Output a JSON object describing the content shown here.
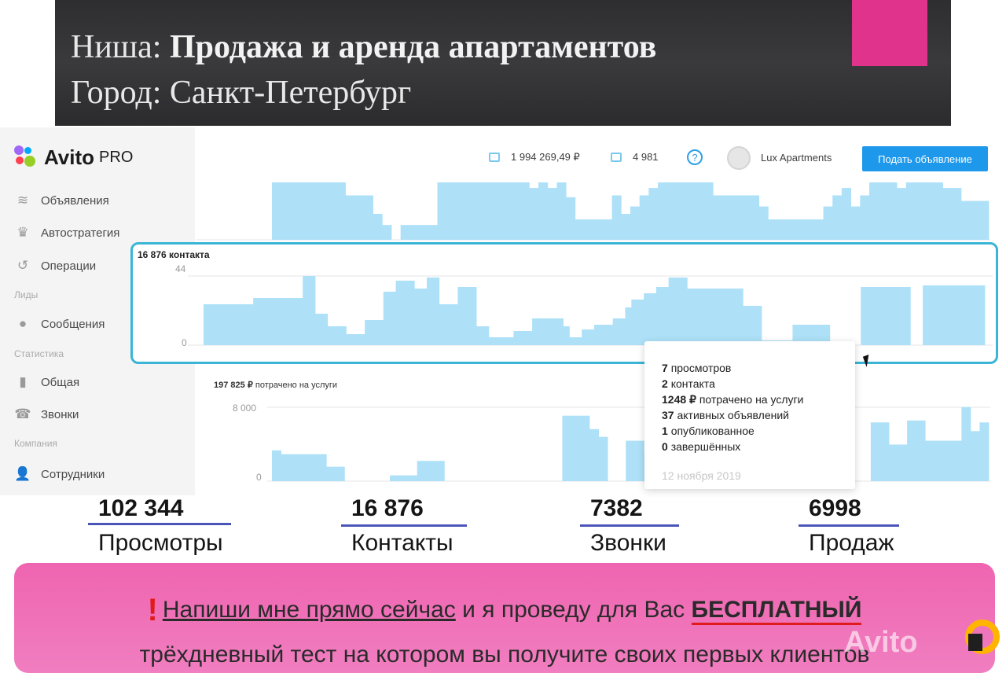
{
  "banner": {
    "niche_label": "Ниша:",
    "niche_value": "Продажа и аренда апартаментов",
    "city_label": "Город:",
    "city_value": "Санкт-Петербург",
    "accent_color": "#e0338c"
  },
  "sidebar": {
    "logo_text": "Avito",
    "logo_pro": "PRO",
    "items": [
      {
        "label": "Объявления",
        "icon": "layers-icon"
      },
      {
        "label": "Автостратегия",
        "icon": "crown-icon"
      },
      {
        "label": "Операции",
        "icon": "history-icon"
      },
      {
        "label": "Сообщения",
        "icon": "chat-icon"
      },
      {
        "label": "Общая",
        "icon": "bar-chart-icon"
      },
      {
        "label": "Звонки",
        "icon": "phone-icon"
      },
      {
        "label": "Сотрудники",
        "icon": "user-icon"
      }
    ],
    "sections": [
      "Лиды",
      "Статистика",
      "Компания"
    ]
  },
  "topbar": {
    "balance": "1 994 269,49 ₽",
    "bonus": "4 981",
    "help": "?",
    "account_name": "Lux Apartments",
    "cta_label": "Подать объявление"
  },
  "contacts_panel": {
    "title": "16 876 контакта",
    "y_max_label": "44",
    "y_min_label": "0"
  },
  "spend_panel": {
    "title_value": "197 825 ₽",
    "title_text": "потрачено на услуги",
    "y_max_label": "8 000",
    "y_min_label": "0"
  },
  "tooltip": {
    "lines": [
      {
        "value": "7",
        "text": "просмотров"
      },
      {
        "value": "2",
        "text": "контакта"
      },
      {
        "value": "1248 ₽",
        "text": "потрачено на услуги"
      },
      {
        "value": "37",
        "text": "активных объявлений"
      },
      {
        "value": "1",
        "text": "опубликованное"
      },
      {
        "value": "0",
        "text": "завершённых"
      }
    ],
    "date": "12 ноября 2019"
  },
  "stats": [
    {
      "value": "102 344",
      "label": "Просмотры"
    },
    {
      "value": "16 876",
      "label": "Контакты"
    },
    {
      "value": "7382",
      "label": "Звонки"
    },
    {
      "value": "6998",
      "label": "Продаж"
    }
  ],
  "promo": {
    "exclamation": "!",
    "link_text": "Напиши мне прямо сейчас",
    "middle_text": " и я проведу для Вас ",
    "strong_text": "БЕСПЛАТНЫЙ",
    "line2": "трёхдневный тест на котором вы получите своих первых клиентов",
    "watermark": "Avito"
  },
  "chart_data": [
    {
      "type": "bar",
      "title": "",
      "values": [
        31,
        31,
        31,
        31,
        31,
        31,
        31,
        31,
        24,
        24,
        24,
        14,
        8,
        0,
        8,
        8,
        8,
        8,
        31,
        31,
        31,
        31,
        31,
        31,
        31,
        31,
        31,
        31,
        28,
        31,
        28,
        31,
        23,
        11,
        11,
        11,
        11,
        24,
        14,
        18,
        24,
        28,
        31,
        31,
        31,
        31,
        31,
        31,
        24,
        24,
        24,
        24,
        24,
        18,
        11,
        11,
        11,
        11,
        11,
        11,
        18,
        24,
        28,
        18,
        24,
        31,
        31,
        31,
        28,
        31,
        31,
        31,
        31,
        28,
        28,
        21,
        21,
        21
      ],
      "ylim": [
        0,
        31
      ]
    },
    {
      "type": "bar",
      "title": "16 876 контакта",
      "values": [
        26,
        26,
        26,
        26,
        26,
        26,
        26,
        26,
        30,
        30,
        30,
        30,
        30,
        30,
        30,
        30,
        44,
        44,
        20,
        20,
        12,
        12,
        12,
        7,
        7,
        7,
        16,
        16,
        16,
        34,
        34,
        41,
        41,
        41,
        36,
        36,
        43,
        43,
        26,
        26,
        26,
        37,
        37,
        37,
        12,
        12,
        5,
        5,
        5,
        5,
        9,
        9,
        9,
        17,
        17,
        17,
        17,
        17,
        12,
        5,
        5,
        10,
        10,
        13,
        13,
        13,
        17,
        17,
        24,
        29,
        29,
        33,
        33,
        37,
        37,
        43,
        43,
        43,
        36,
        36,
        36,
        36,
        36,
        36,
        36,
        36,
        36,
        25,
        25,
        25,
        3,
        3,
        3,
        3,
        3,
        13,
        13,
        13,
        13,
        13,
        13,
        0,
        0,
        0,
        0,
        0,
        37,
        37,
        37,
        37,
        37,
        37,
        37,
        37,
        0,
        0,
        38,
        38,
        38,
        38,
        38,
        38,
        38,
        38,
        38,
        38
      ],
      "ylim": [
        0,
        44
      ]
    },
    {
      "type": "bar",
      "title": "197 825 ₽ потрачено на услуги",
      "values": [
        3200,
        2800,
        2800,
        2800,
        2800,
        2800,
        1500,
        1500,
        0,
        0,
        0,
        0,
        0,
        600,
        600,
        600,
        2100,
        2100,
        2100,
        0,
        0,
        0,
        0,
        0,
        0,
        0,
        0,
        0,
        0,
        0,
        0,
        0,
        6800,
        6800,
        6800,
        5400,
        4600,
        0,
        0,
        4200,
        4200,
        2900,
        2900,
        2900,
        2900,
        6800,
        6800,
        6800,
        3800,
        3800,
        2800,
        5700,
        5700,
        3000,
        3000,
        3000,
        3000,
        3000,
        3000,
        3000,
        0,
        0,
        0,
        0,
        0,
        0,
        6100,
        6100,
        3800,
        3800,
        6300,
        6300,
        4200,
        4200,
        4200,
        4200,
        7700,
        5200,
        6100
      ],
      "ylim": [
        0,
        8000
      ]
    }
  ]
}
